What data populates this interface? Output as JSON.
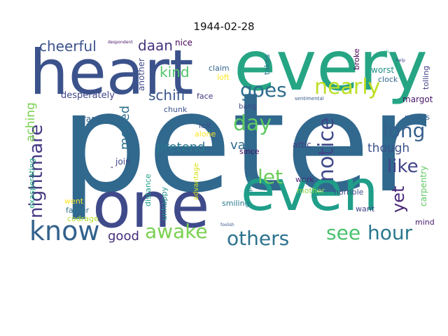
{
  "title": "1944-02-28",
  "words": [
    {
      "text": "peter",
      "color": "#31688e"
    },
    {
      "text": "every",
      "color": "#26a584"
    },
    {
      "text": "heart",
      "color": "#3b528b"
    },
    {
      "text": "one",
      "color": "#3f4a8a"
    },
    {
      "text": "even",
      "color": "#1f9e89"
    },
    {
      "text": "know",
      "color": "#33628d"
    },
    {
      "text": "awake",
      "color": "#7ad151"
    },
    {
      "text": "others",
      "color": "#2c728e"
    },
    {
      "text": "see",
      "color": "#4ac16d"
    },
    {
      "text": "hour",
      "color": "#2a788e"
    },
    {
      "text": "goes",
      "color": "#2e6d8e"
    },
    {
      "text": "nearly",
      "color": "#bddf26"
    },
    {
      "text": "day",
      "color": "#5ec962"
    },
    {
      "text": "long",
      "color": "#355f8d"
    },
    {
      "text": "notice",
      "color": "#3e4989"
    },
    {
      "text": "like",
      "color": "#414487"
    },
    {
      "text": "yet",
      "color": "#482878"
    },
    {
      "text": "let",
      "color": "#6ccd5a"
    },
    {
      "text": "nightmare",
      "color": "#443983"
    },
    {
      "text": "cheerful",
      "color": "#3b528b"
    },
    {
      "text": "daan",
      "color": "#46337e"
    },
    {
      "text": "kind",
      "color": "#52c569"
    },
    {
      "text": "schiff",
      "color": "#39568c"
    },
    {
      "text": "aching",
      "color": "#7ad151"
    },
    {
      "text": "melted",
      "color": "#2d708e"
    },
    {
      "text": "pretend",
      "color": "#2a788e"
    },
    {
      "text": "van",
      "color": "#2f6c8e"
    },
    {
      "text": "though",
      "color": "#3b518b"
    },
    {
      "text": "good",
      "color": "#472d7b"
    },
    {
      "text": "desperately",
      "color": "#3f4889"
    },
    {
      "text": "nice",
      "color": "#440154"
    },
    {
      "text": "another",
      "color": "#3f4889"
    },
    {
      "text": "claim",
      "color": "#33638d"
    },
    {
      "text": "loft",
      "color": "#fde725"
    },
    {
      "text": "takes",
      "color": "#2c738e"
    },
    {
      "text": "broke",
      "color": "#440154"
    },
    {
      "text": "worst",
      "color": "#20928c"
    },
    {
      "text": "clock",
      "color": "#31688e"
    },
    {
      "text": "tolling",
      "color": "#424086"
    },
    {
      "text": "margot",
      "color": "#481668"
    },
    {
      "text": "face",
      "color": "#453781"
    },
    {
      "text": "chunk",
      "color": "#3b528b"
    },
    {
      "text": "bang",
      "color": "#3e4989"
    },
    {
      "text": "sentimental",
      "color": "#39568c"
    },
    {
      "text": "makes",
      "color": "#33638d"
    },
    {
      "text": "rasp",
      "color": "#32648e"
    },
    {
      "text": "alone",
      "color": "#fde725"
    },
    {
      "text": "left",
      "color": "#3b528b"
    },
    {
      "text": "since",
      "color": "#471063"
    },
    {
      "text": "attic",
      "color": "#423f85"
    },
    {
      "text": "carpentry",
      "color": "#5ec962"
    },
    {
      "text": "join",
      "color": "#404688"
    },
    {
      "text": "advantage",
      "color": "#d8e219"
    },
    {
      "text": "pure",
      "color": "#26828e"
    },
    {
      "text": "work",
      "color": "#482475"
    },
    {
      "text": "mother",
      "color": "#8fd744"
    },
    {
      "text": "horrible",
      "color": "#3e4a89"
    },
    {
      "text": "exasperating",
      "color": "#22a884"
    },
    {
      "text": "distance",
      "color": "#1fa088"
    },
    {
      "text": "unhappy",
      "color": "#21918c"
    },
    {
      "text": "went",
      "color": "#fde725"
    },
    {
      "text": "father",
      "color": "#2c728e"
    },
    {
      "text": "codrage",
      "color": "#b5de2b"
    },
    {
      "text": "smiling",
      "color": "#2a788e"
    },
    {
      "text": "want",
      "color": "#414487"
    },
    {
      "text": "mind",
      "color": "#48186a"
    },
    {
      "text": "foolish",
      "color": "#39568c"
    },
    {
      "text": "despondent",
      "color": "#481467"
    },
    {
      "text": "oh",
      "color": "#27ad81"
    },
    {
      "text": "help",
      "color": "#414487"
    },
    {
      "text": "\"",
      "color": "#440154"
    }
  ]
}
